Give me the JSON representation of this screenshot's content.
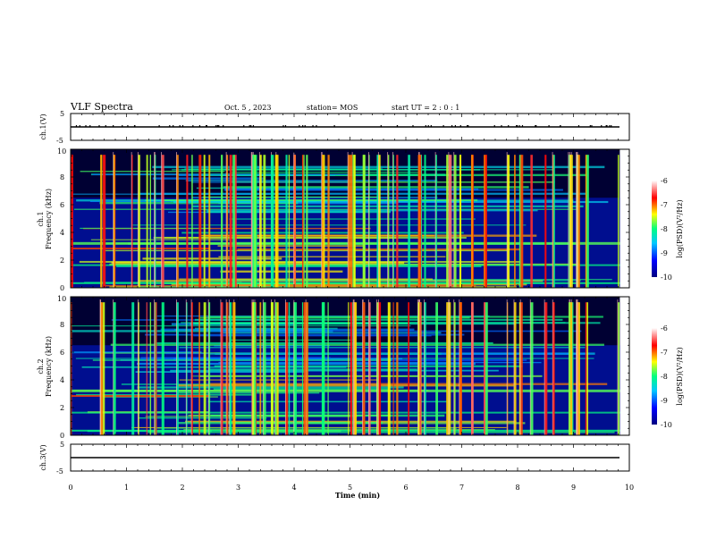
{
  "header": {
    "title": "VLF Spectra",
    "date": "Oct. 5 , 2023",
    "station": "station= MOS",
    "start_ut": "start  UT =  2 : 0  : 1"
  },
  "chart_data": [
    {
      "id": "ch1-voltage",
      "type": "line",
      "ylabel": "ch.1(V)",
      "ylim": [
        -5,
        5
      ],
      "yticks": [
        "5",
        "-5"
      ],
      "xlim": [
        0,
        10
      ],
      "series": [
        {
          "x": [
            0,
            9.83
          ],
          "values": [
            0,
            0
          ]
        }
      ]
    },
    {
      "id": "ch1-spectrogram",
      "type": "heatmap",
      "ylabel_line1": "ch.1",
      "ylabel_line2": "Frequency  (kHz)",
      "ylim": [
        0,
        10
      ],
      "yticks": [
        "0",
        "2",
        "4",
        "6",
        "8",
        "10"
      ],
      "xlim": [
        0,
        10
      ],
      "data_end": 9.83,
      "colorbar": {
        "label": "log(PSD)(V²/Hz)",
        "range": [
          -10,
          -6
        ],
        "ticks": [
          "-6",
          "-7",
          "-8",
          "-9",
          "-10"
        ]
      }
    },
    {
      "id": "ch2-spectrogram",
      "type": "heatmap",
      "ylabel_line1": "ch.2",
      "ylabel_line2": "Frequency  (kHz)",
      "ylim": [
        0,
        10
      ],
      "yticks": [
        "0",
        "2",
        "4",
        "6",
        "8",
        "10"
      ],
      "xlim": [
        0,
        10
      ],
      "data_end": 9.83,
      "colorbar": {
        "label": "log(PSD)(V²/Hz)",
        "range": [
          -10,
          -6
        ],
        "ticks": [
          "-6",
          "-7",
          "-8",
          "-9",
          "-10"
        ]
      }
    },
    {
      "id": "ch3-voltage",
      "type": "line",
      "ylabel": "ch.3(V)",
      "ylim": [
        -5,
        5
      ],
      "yticks": [
        "5",
        "-5"
      ],
      "xlim": [
        0,
        10
      ],
      "series": [
        {
          "x": [
            0,
            9.83
          ],
          "values": [
            0,
            0
          ]
        }
      ]
    }
  ],
  "xaxis": {
    "label": "Time  (min)",
    "ticks": [
      "0",
      "1",
      "2",
      "3",
      "4",
      "5",
      "6",
      "7",
      "8",
      "9",
      "10"
    ]
  },
  "colors": {
    "background": "#000033",
    "colormap": [
      "#000080",
      "#0000ff",
      "#00c8ff",
      "#00ff80",
      "#ffff00",
      "#ff0000",
      "#ffffff"
    ]
  }
}
